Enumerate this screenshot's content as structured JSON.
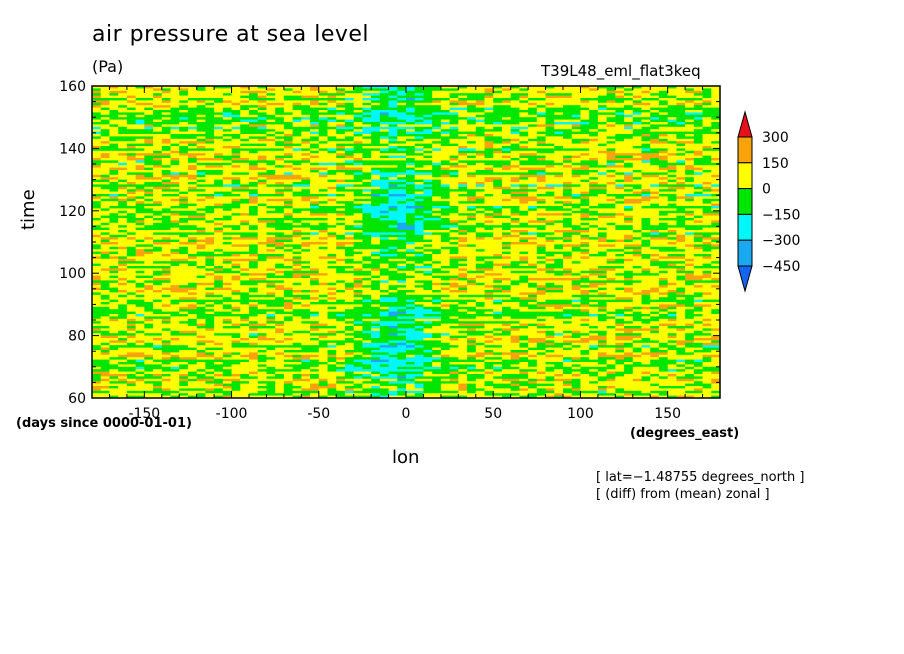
{
  "chart_data": {
    "type": "heatmap",
    "title": "air pressure at sea level",
    "units": "(Pa)",
    "run_label": "T39L48_eml_flat3keq",
    "xlabel": "lon",
    "ylabel": "time",
    "x_units": "(degrees_east)",
    "y_units": "(days since 0000-01-01)",
    "xlim": [
      -180,
      180
    ],
    "ylim": [
      60,
      160
    ],
    "x_ticks": [
      -150,
      -100,
      -50,
      0,
      50,
      100,
      150
    ],
    "y_ticks": [
      60,
      80,
      100,
      120,
      140,
      160
    ],
    "x_tick_labels": [
      "-150",
      "-100",
      "-50",
      "0",
      "50",
      "100",
      "150"
    ],
    "y_tick_labels": [
      "60",
      "80",
      "100",
      "120",
      "140",
      "160"
    ],
    "colorbar": {
      "levels": [
        300,
        150,
        0,
        -150,
        -300,
        -450
      ],
      "level_labels": [
        "300",
        "150",
        "0",
        "−150",
        "−300",
        "−450"
      ],
      "colors": [
        "#e8101a",
        "#f7a40c",
        "#ffff00",
        "#00e600",
        "#00f7f7",
        "#1aa8f0",
        "#1565f5"
      ]
    },
    "annotations": [
      "[ lat=−1.48755 degrees_north ]",
      "[ (diff) from (mean) zonal ]"
    ],
    "field_description": {
      "background_value": 30,
      "trough_center_lon": -5,
      "trough_width_lon": 22,
      "trough_depth": -240
    }
  }
}
